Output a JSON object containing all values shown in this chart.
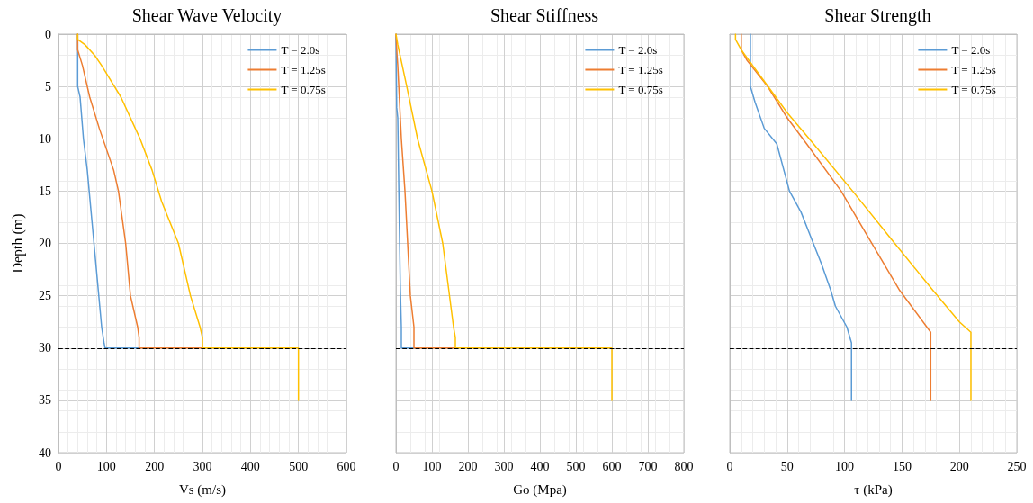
{
  "chart_data": [
    {
      "type": "line",
      "title": "Shear Wave Velocity",
      "xlabel": "Vs (m/s)",
      "ylabel": "Depth (m)",
      "xlim": [
        0,
        600
      ],
      "xticks": [
        0,
        100,
        200,
        300,
        400,
        500,
        600
      ],
      "ylim": [
        40,
        0
      ],
      "yticks": [
        0,
        5,
        10,
        15,
        20,
        25,
        30,
        35,
        40
      ],
      "grid": true,
      "legend": "top right",
      "marker": "none",
      "line_style": "solid",
      "ref_lines": [
        {
          "axis": "y",
          "value": 30,
          "color": "#000000",
          "line_style": "dashed"
        }
      ],
      "series": [
        {
          "name": "T = 2.0s",
          "color": "#5b9bd5",
          "x": [
            40,
            40,
            45,
            52,
            60,
            70,
            80,
            90,
            95,
            97,
            168
          ],
          "values": [
            0,
            5,
            6,
            10,
            13,
            18,
            23,
            28,
            29.5,
            30,
            30
          ]
        },
        {
          "name": "T = 1.25s",
          "color": "#ed7d31",
          "x": [
            40,
            40,
            50,
            65,
            85,
            100,
            115,
            125,
            140,
            150,
            165,
            168,
            168,
            300
          ],
          "values": [
            0,
            1.5,
            3,
            6,
            9,
            11,
            13,
            15,
            20,
            25,
            28,
            29,
            30,
            30
          ]
        },
        {
          "name": "T = 0.75s",
          "color": "#ffc000",
          "x": [
            40,
            40,
            55,
            75,
            90,
            110,
            130,
            155,
            170,
            195,
            215,
            250,
            275,
            295,
            300,
            300,
            500,
            500
          ],
          "values": [
            0,
            0.5,
            1,
            2,
            3,
            4.5,
            6,
            8.5,
            10,
            13,
            16,
            20,
            25,
            28,
            29,
            30,
            30,
            35
          ]
        }
      ]
    },
    {
      "type": "line",
      "title": "Shear Stiffness",
      "xlabel": "Go (Mpa)",
      "xlim": [
        0,
        800
      ],
      "xticks": [
        0,
        100,
        200,
        300,
        400,
        500,
        600,
        700,
        800
      ],
      "ylim": [
        40,
        0
      ],
      "yticks": [
        0,
        5,
        10,
        15,
        20,
        25,
        30,
        35,
        40
      ],
      "tick_labels": "x",
      "grid": true,
      "legend": "top right",
      "marker": "none",
      "line_style": "solid",
      "ref_lines": [
        {
          "axis": "y",
          "value": 30,
          "color": "#000000",
          "line_style": "dashed"
        }
      ],
      "series": [
        {
          "name": "T = 2.0s",
          "color": "#5b9bd5",
          "x": [
            0,
            2,
            5,
            8,
            12,
            15,
            15,
            50
          ],
          "values": [
            0,
            7,
            8,
            15,
            24,
            28,
            30,
            30
          ]
        },
        {
          "name": "T = 1.25s",
          "color": "#ed7d31",
          "x": [
            0,
            3,
            5,
            15,
            25,
            40,
            50,
            50,
            165
          ],
          "values": [
            0,
            2,
            3,
            10,
            15,
            25,
            28,
            30,
            30
          ]
        },
        {
          "name": "T = 0.75s",
          "color": "#ffc000",
          "x": [
            0,
            5,
            30,
            60,
            100,
            130,
            160,
            165,
            165,
            600,
            600
          ],
          "values": [
            0,
            1,
            5,
            10,
            15,
            20,
            28,
            29,
            30,
            30,
            35
          ]
        }
      ]
    },
    {
      "type": "line",
      "title": "Shear Strength",
      "xlabel": "τ (kPa)",
      "xlim": [
        0,
        250
      ],
      "xticks": [
        0,
        50,
        100,
        150,
        200,
        250
      ],
      "ylim": [
        40,
        0
      ],
      "yticks": [
        0,
        5,
        10,
        15,
        20,
        25,
        30,
        35,
        40
      ],
      "tick_labels": "x",
      "grid": true,
      "legend": "top right",
      "marker": "none",
      "line_style": "solid",
      "ref_lines": [
        {
          "axis": "y",
          "value": 30,
          "color": "#000000",
          "line_style": "dashed"
        }
      ],
      "series": [
        {
          "name": "T = 2.0s",
          "color": "#5b9bd5",
          "x": [
            18,
            18,
            22,
            30,
            41,
            52,
            62,
            71,
            80,
            88,
            92,
            102,
            106,
            106
          ],
          "values": [
            0,
            5,
            6.5,
            9,
            10.5,
            15,
            17,
            19.5,
            22,
            24.5,
            26,
            28,
            29.5,
            35
          ]
        },
        {
          "name": "T = 1.25s",
          "color": "#ed7d31",
          "x": [
            10,
            10,
            15,
            33,
            50,
            67,
            97,
            121,
            148,
            175,
            175
          ],
          "values": [
            0,
            1.5,
            2.5,
            5,
            8,
            10.5,
            15,
            19.5,
            24.5,
            28.5,
            35
          ]
        },
        {
          "name": "T = 0.75s",
          "color": "#ffc000",
          "x": [
            5,
            5,
            10,
            20,
            30,
            50,
            73,
            107,
            140,
            177,
            200,
            210,
            210
          ],
          "values": [
            0,
            0.5,
            1.5,
            3,
            4.5,
            7.5,
            10.5,
            15,
            19.5,
            24.5,
            27.5,
            28.5,
            35
          ]
        }
      ]
    }
  ]
}
